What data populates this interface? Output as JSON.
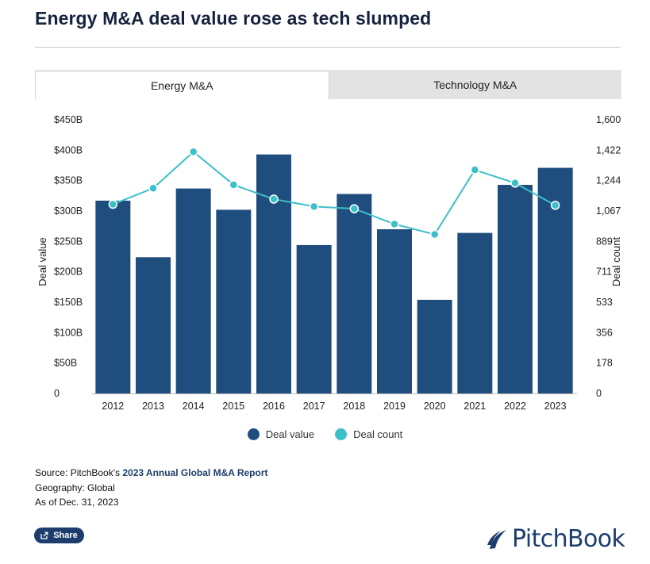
{
  "title": "Energy M&A deal value rose as tech slumped",
  "tabs": [
    {
      "label": "Energy M&A",
      "active": true
    },
    {
      "label": "Technology M&A",
      "active": false
    }
  ],
  "chart_data": {
    "type": "bar",
    "categories": [
      "2012",
      "2013",
      "2014",
      "2015",
      "2016",
      "2017",
      "2018",
      "2019",
      "2020",
      "2021",
      "2022",
      "2023"
    ],
    "series": [
      {
        "name": "Deal value",
        "type": "bar",
        "axis": "left",
        "color": "#1f4e7e",
        "values": [
          317,
          224,
          337,
          302,
          393,
          244,
          328,
          270,
          154,
          264,
          343,
          371
        ]
      },
      {
        "name": "Deal count",
        "type": "line",
        "axis": "right",
        "color": "#3dbfc8",
        "values": [
          1106,
          1200,
          1413,
          1220,
          1136,
          1093,
          1080,
          990,
          930,
          1307,
          1230,
          1100
        ]
      }
    ],
    "y_left": {
      "label": "Deal value",
      "range": [
        0,
        450
      ],
      "ticks": [
        "0",
        "$50B",
        "$100B",
        "$150B",
        "$200B",
        "$250B",
        "$300B",
        "$350B",
        "$400B",
        "$450B"
      ]
    },
    "y_right": {
      "label": "Deal count",
      "range": [
        0,
        1600
      ],
      "ticks": [
        "0",
        "178",
        "356",
        "533",
        "711",
        "889",
        "1,067",
        "1,244",
        "1,422",
        "1,600"
      ]
    },
    "grid": false,
    "legend_position": "bottom"
  },
  "legend": [
    {
      "label": "Deal value",
      "color": "#1f4e7e"
    },
    {
      "label": "Deal count",
      "color": "#3dbfc8"
    }
  ],
  "source": {
    "prefix": "Source: PitchBook's ",
    "link_text": "2023 Annual Global M&A Report",
    "geography": "Geography: Global",
    "as_of": "As of Dec. 31, 2023"
  },
  "share_label": "Share",
  "logo_text": "PitchBook"
}
